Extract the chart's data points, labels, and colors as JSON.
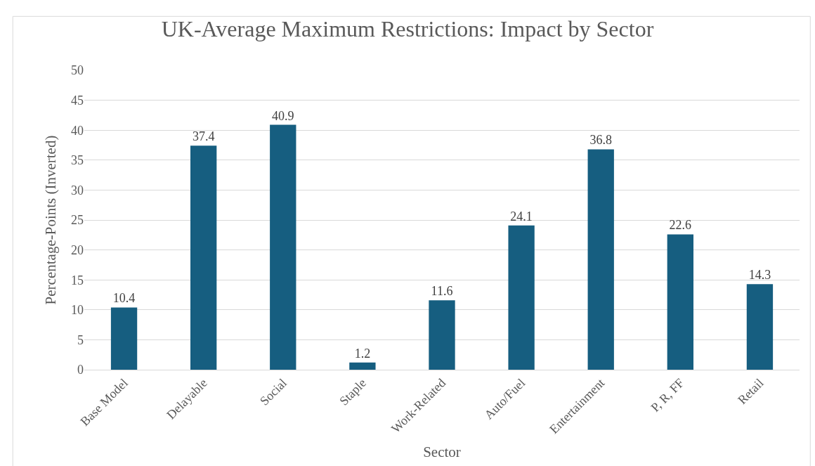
{
  "chart_data": {
    "type": "bar",
    "title": "UK-Average Maximum Restrictions: Impact by Sector",
    "xlabel": "Sector",
    "ylabel": "Percentage-Points (Inverted)",
    "categories": [
      "Base Model",
      "Delayable",
      "Social",
      "Staple",
      "Work-Related",
      "Auto/Fuel",
      "Entertainment",
      "P, R, FF",
      "Retail"
    ],
    "values": [
      10.4,
      37.4,
      40.9,
      1.2,
      11.6,
      24.1,
      36.8,
      22.6,
      14.3
    ],
    "color": "#165e80",
    "ylim": [
      0,
      50
    ],
    "yticks": [
      0,
      5,
      10,
      15,
      20,
      25,
      30,
      35,
      40,
      45,
      50
    ],
    "grid": "y",
    "data_labels": true
  }
}
